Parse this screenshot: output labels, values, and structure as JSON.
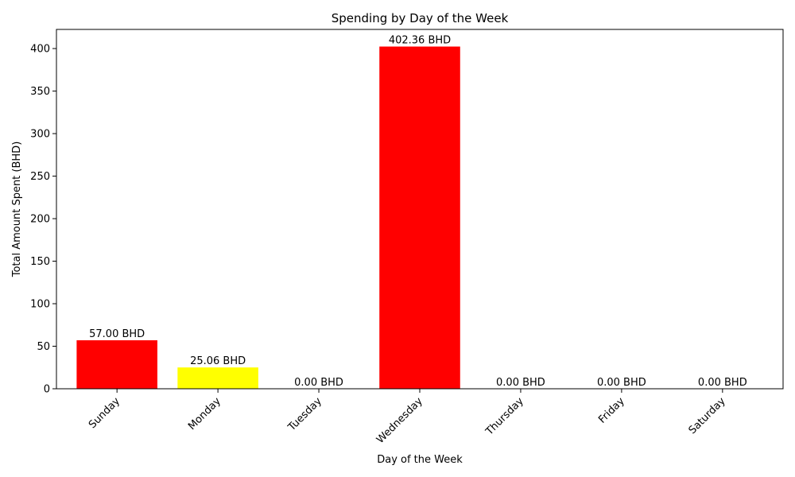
{
  "chart_data": {
    "type": "bar",
    "title": "Spending by Day of the Week",
    "xlabel": "Day of the Week",
    "ylabel": "Total Amount Spent (BHD)",
    "categories": [
      "Sunday",
      "Monday",
      "Tuesday",
      "Wednesday",
      "Thursday",
      "Friday",
      "Saturday"
    ],
    "values": [
      57.0,
      25.06,
      0.0,
      402.36,
      0.0,
      0.0,
      0.0
    ],
    "data_labels": [
      "57.00 BHD",
      "25.06 BHD",
      "0.00 BHD",
      "402.36 BHD",
      "0.00 BHD",
      "0.00 BHD",
      "0.00 BHD"
    ],
    "bar_colors": [
      "#ff0000",
      "#ffff00",
      "#ff0000",
      "#ff0000",
      "#ff0000",
      "#ff0000",
      "#ff0000"
    ],
    "ylim": [
      0,
      422.5
    ],
    "yticks": [
      0,
      50,
      100,
      150,
      200,
      250,
      300,
      350,
      400
    ],
    "grid": false,
    "legend": "none"
  }
}
